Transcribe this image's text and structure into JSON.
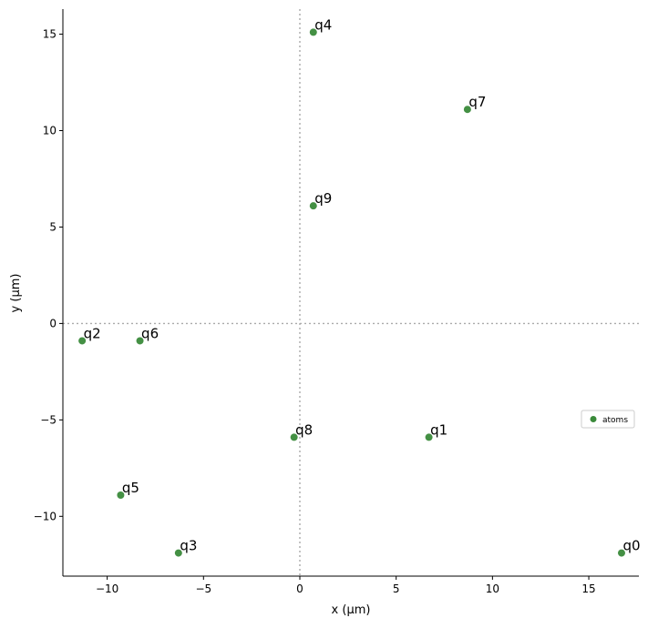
{
  "chart_data": {
    "type": "scatter",
    "xlabel": "x (µm)",
    "ylabel": "y (µm)",
    "xlim": [
      -12.3,
      17.6
    ],
    "ylim": [
      -13.1,
      16.3
    ],
    "xticks": [
      -10,
      -5,
      0,
      5,
      10,
      15
    ],
    "yticks": [
      -10,
      -5,
      0,
      5,
      10,
      15
    ],
    "xtick_labels": [
      "−10",
      "−5",
      "0",
      "5",
      "10",
      "15"
    ],
    "ytick_labels": [
      "−10",
      "−5",
      "0",
      "5",
      "10",
      "15"
    ],
    "reference_lines": {
      "x": 0,
      "y": 0,
      "style": "dotted"
    },
    "grid": false,
    "legend_position": "center-right",
    "series": [
      {
        "name": "atoms",
        "color": "#3a8a3a",
        "points": [
          {
            "label": "q0",
            "x": 16.7,
            "y": -11.9
          },
          {
            "label": "q1",
            "x": 6.7,
            "y": -5.9
          },
          {
            "label": "q2",
            "x": -11.3,
            "y": -0.9
          },
          {
            "label": "q3",
            "x": -6.3,
            "y": -11.9
          },
          {
            "label": "q4",
            "x": 0.7,
            "y": 15.1
          },
          {
            "label": "q5",
            "x": -9.3,
            "y": -8.9
          },
          {
            "label": "q6",
            "x": -8.3,
            "y": -0.9
          },
          {
            "label": "q7",
            "x": 8.7,
            "y": 11.1
          },
          {
            "label": "q8",
            "x": -0.3,
            "y": -5.9
          },
          {
            "label": "q9",
            "x": 0.7,
            "y": 6.1
          }
        ]
      }
    ]
  }
}
